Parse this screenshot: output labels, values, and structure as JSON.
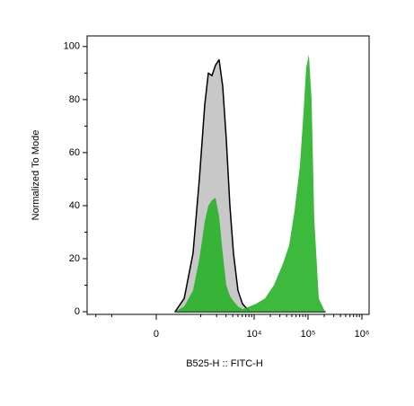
{
  "chart_data": {
    "type": "area",
    "x_label": "B525-H :: FITC-H",
    "y_label": "Normalized To Mode",
    "xscale": "biexponential",
    "x": [
      273,
      457,
      702,
      938,
      1192,
      1396,
      1632,
      1909,
      2227,
      2602,
      3035,
      3541,
      4130,
      5005,
      6066,
      8250,
      10800,
      15850,
      23250,
      34100,
      44600,
      56200,
      70700,
      82400,
      92400,
      103700,
      116400,
      130600,
      158300,
      207000
    ],
    "series": [
      {
        "color": "#c8c8c8",
        "line_color": "#000000",
        "values": [
          0,
          5,
          22,
          50,
          78,
          90,
          89,
          93,
          95,
          85,
          65,
          40,
          22,
          8,
          3,
          0,
          0,
          0,
          0,
          0,
          0,
          0,
          0,
          0,
          0,
          0,
          0,
          0,
          0,
          0
        ]
      },
      {
        "color": "#22b022",
        "values": [
          0,
          2,
          8,
          20,
          34,
          40,
          42,
          43,
          36,
          22,
          10,
          6,
          4,
          2,
          1,
          2,
          3,
          5,
          10,
          18,
          25,
          38,
          55,
          75,
          92,
          97,
          80,
          35,
          5,
          0
        ]
      }
    ],
    "xlim": [
      -2920,
      1360000
    ],
    "xticks": [
      {
        "value": 0,
        "label": "0"
      },
      {
        "value": 10000,
        "label": "10⁴"
      },
      {
        "value": 100000,
        "label": "10⁵"
      },
      {
        "value": 1000000,
        "label": "10⁶"
      }
    ],
    "xminorticks": [
      -2000,
      -1000,
      1000,
      2000,
      3000,
      4000,
      5000,
      6000,
      7000,
      8000,
      9000,
      20000,
      30000,
      40000,
      50000,
      60000,
      70000,
      80000,
      90000,
      200000,
      300000,
      400000,
      500000,
      600000,
      700000,
      800000,
      900000
    ],
    "ylim": [
      -1,
      104
    ],
    "yticks": [
      0,
      20,
      40,
      60,
      80,
      100
    ],
    "yminorticks": [
      10,
      30,
      50,
      70,
      90
    ]
  }
}
